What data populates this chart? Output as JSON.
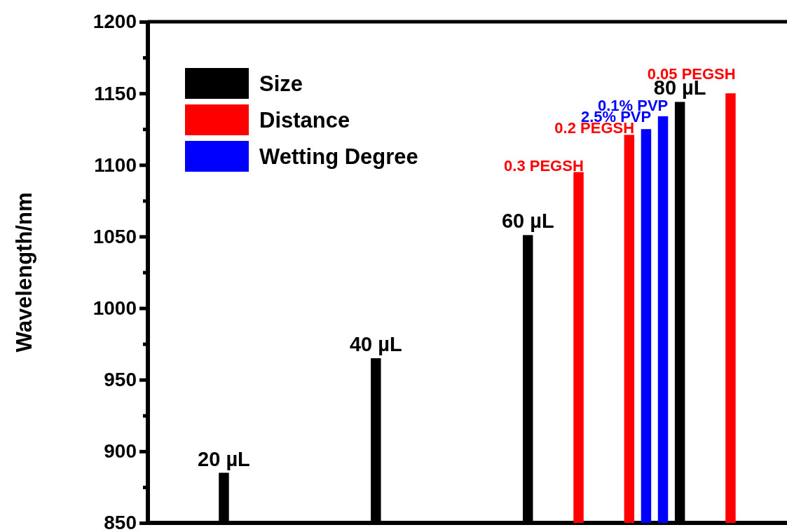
{
  "chart_data": {
    "type": "bar",
    "ylabel": "Wavelength/nm",
    "categories": [
      null,
      null,
      null,
      null,
      null,
      null,
      null,
      null,
      null,
      null,
      null,
      null,
      null,
      null,
      null,
      null,
      null,
      null,
      null,
      null,
      null,
      null,
      null,
      null,
      null,
      null,
      null,
      null,
      null,
      null,
      null,
      null,
      null,
      null,
      null,
      null,
      null,
      null
    ],
    "annotations": [
      {
        "text": "20 µL",
        "y": 885
      },
      {
        "text": "40 µL",
        "y": 965
      },
      {
        "text": "60 µL",
        "y": 1051
      },
      {
        "text": "80 µL",
        "y": 1144
      },
      "0.3 PEGSH",
      "0.2 PEGSH",
      "0.05 PEGSH",
      "2.5% PVP",
      "0.1% PVP"
    ],
    "series": [
      {
        "name": "Size",
        "color": "#000000",
        "values": [
          null,
          null,
          null,
          null,
          885,
          null,
          null,
          null,
          null,
          null,
          null,
          null,
          null,
          965,
          null,
          null,
          null,
          null,
          null,
          null,
          null,
          null,
          1051,
          null,
          null,
          null,
          null,
          null,
          null,
          null,
          null,
          1144,
          null,
          null,
          null,
          null,
          null,
          null
        ]
      },
      {
        "name": "Distance",
        "color": "#ff0000",
        "values": [
          null,
          null,
          null,
          null,
          null,
          null,
          null,
          null,
          null,
          null,
          null,
          null,
          null,
          null,
          null,
          null,
          null,
          null,
          null,
          null,
          null,
          null,
          null,
          null,
          null,
          1095,
          null,
          null,
          1121,
          null,
          null,
          null,
          null,
          null,
          1150,
          null,
          null,
          null
        ]
      },
      {
        "name": "Wetting Degree",
        "color": "#0000ff",
        "values": [
          null,
          null,
          null,
          null,
          null,
          null,
          null,
          null,
          null,
          null,
          null,
          null,
          null,
          null,
          null,
          null,
          null,
          null,
          null,
          null,
          null,
          null,
          null,
          null,
          null,
          null,
          null,
          null,
          null,
          1125,
          1134,
          null,
          null,
          null,
          null,
          null,
          null,
          null
        ]
      }
    ],
    "ylim": [
      850,
      1200
    ],
    "yticks": [
      850,
      {
        "value": 875,
        "label": null
      },
      900,
      {
        "value": 925,
        "label": null
      },
      950,
      {
        "value": 975,
        "label": null
      },
      1000,
      {
        "value": 1025,
        "label": null
      },
      1050,
      {
        "value": 1075,
        "label": null
      },
      1100,
      {
        "value": 1125,
        "label": null
      },
      1150,
      {
        "value": 1175,
        "label": null
      },
      1200
    ],
    "legend": "top left"
  }
}
